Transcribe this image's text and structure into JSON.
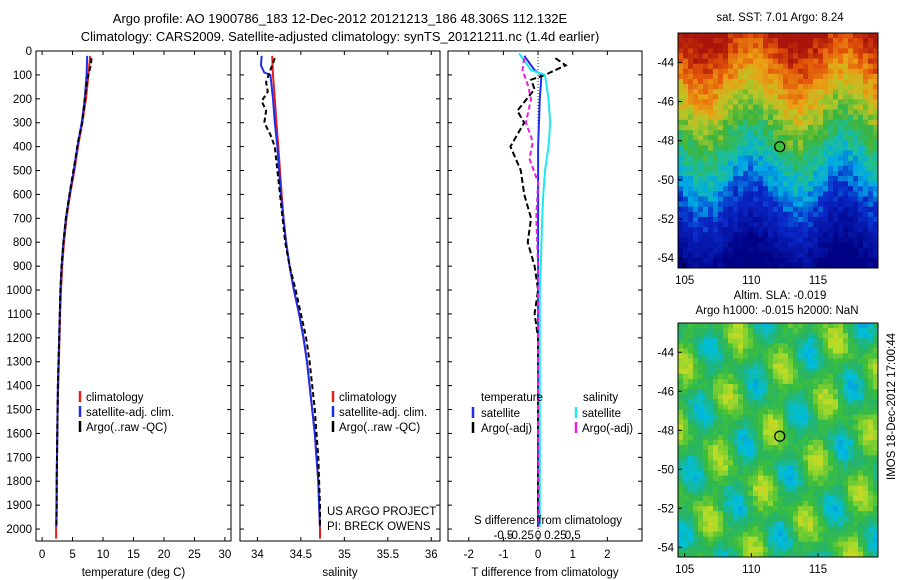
{
  "titles": {
    "line1": "Argo profile: AO 1900786_183 12-Dec-2012 20121213_186 48.306S 112.132E",
    "line2": "Climatology: CARS2009. Satellite-adjusted climatology: synTS_20121211.nc (1.4d earlier)"
  },
  "credit": {
    "line1": "US ARGO PROJECT",
    "line2": "PI: BRECK OWENS"
  },
  "watermark": "IMOS 18-Dec-2012 17:00:44",
  "colors": {
    "climatology": "#e8201c",
    "satellite": "#1f2ee8",
    "argo": "#000000",
    "salinity_satellite": "#1ee8f0",
    "salinity_argo": "#e81ee0"
  },
  "chart_data": [
    {
      "type": "line",
      "id": "temperature",
      "xlabel": "temperature (deg C)",
      "ylabel": "",
      "xlim": [
        -1,
        31
      ],
      "xticks": [
        0,
        5,
        10,
        15,
        20,
        25,
        30
      ],
      "ylim": [
        2050,
        0
      ],
      "yticks": [
        0,
        100,
        200,
        300,
        400,
        500,
        600,
        700,
        800,
        900,
        1000,
        1100,
        1200,
        1300,
        1400,
        1500,
        1600,
        1700,
        1800,
        1900,
        2000
      ],
      "legend": {
        "position": "bottom-right",
        "items": [
          "climatology",
          "satellite-adj. clim.",
          "Argo(..raw -QC)"
        ]
      },
      "series": [
        {
          "name": "climatology",
          "color": "#e8201c",
          "dash": "",
          "points": [
            [
              7.9,
              20
            ],
            [
              7.6,
              100
            ],
            [
              7.2,
              200
            ],
            [
              6.6,
              300
            ],
            [
              5.9,
              400
            ],
            [
              5.3,
              500
            ],
            [
              4.6,
              600
            ],
            [
              4.0,
              700
            ],
            [
              3.6,
              800
            ],
            [
              3.3,
              900
            ],
            [
              3.1,
              1000
            ],
            [
              2.95,
              1100
            ],
            [
              2.85,
              1200
            ],
            [
              2.75,
              1300
            ],
            [
              2.65,
              1400
            ],
            [
              2.55,
              1500
            ],
            [
              2.5,
              1600
            ],
            [
              2.45,
              1700
            ],
            [
              2.4,
              1800
            ],
            [
              2.35,
              1900
            ],
            [
              2.3,
              2000
            ],
            [
              2.3,
              2040
            ]
          ]
        },
        {
          "name": "satellite-adj. clim.",
          "color": "#1f2ee8",
          "dash": "",
          "points": [
            [
              7.4,
              20
            ],
            [
              7.3,
              100
            ],
            [
              7.0,
              200
            ],
            [
              6.5,
              300
            ],
            [
              5.8,
              400
            ],
            [
              5.2,
              500
            ],
            [
              4.5,
              600
            ],
            [
              3.9,
              700
            ],
            [
              3.5,
              800
            ],
            [
              3.2,
              900
            ],
            [
              3.0,
              1000
            ],
            [
              2.9,
              1100
            ],
            [
              2.8,
              1200
            ],
            [
              2.7,
              1300
            ],
            [
              2.6,
              1400
            ],
            [
              2.55,
              1500
            ],
            [
              2.5,
              1600
            ],
            [
              2.45,
              1700
            ],
            [
              2.4,
              1800
            ],
            [
              2.4,
              1900
            ],
            [
              2.35,
              1990
            ]
          ]
        },
        {
          "name": "Argo(..raw -QC)",
          "color": "#000000",
          "dash": "5,3",
          "points": [
            [
              8.1,
              30
            ],
            [
              8.0,
              60
            ],
            [
              7.4,
              120
            ],
            [
              7.0,
              200
            ],
            [
              6.6,
              300
            ],
            [
              5.9,
              380
            ],
            [
              5.6,
              430
            ],
            [
              5.0,
              520
            ],
            [
              4.5,
              600
            ],
            [
              3.9,
              700
            ],
            [
              3.5,
              800
            ],
            [
              3.2,
              900
            ],
            [
              3.0,
              1000
            ],
            [
              2.9,
              1100
            ],
            [
              2.8,
              1200
            ],
            [
              2.7,
              1300
            ],
            [
              2.6,
              1400
            ],
            [
              2.55,
              1500
            ],
            [
              2.5,
              1600
            ],
            [
              2.45,
              1700
            ],
            [
              2.4,
              1800
            ],
            [
              2.4,
              1900
            ],
            [
              2.35,
              1990
            ]
          ]
        }
      ]
    },
    {
      "type": "line",
      "id": "salinity",
      "xlabel": "salinity",
      "xlim": [
        33.8,
        36.1
      ],
      "xticks": [
        34,
        34.5,
        35,
        35.5,
        36
      ],
      "xticklabels": [
        "34",
        "34.5",
        "35",
        "35.5",
        "36"
      ],
      "ylim": [
        2050,
        0
      ],
      "legend": {
        "position": "bottom-right",
        "items": [
          "climatology",
          "satellite-adj. clim.",
          "Argo(..raw -QC)"
        ]
      },
      "series": [
        {
          "name": "climatology",
          "color": "#e8201c",
          "dash": "",
          "points": [
            [
              34.17,
              20
            ],
            [
              34.18,
              100
            ],
            [
              34.2,
              200
            ],
            [
              34.22,
              300
            ],
            [
              34.24,
              400
            ],
            [
              34.26,
              500
            ],
            [
              34.28,
              600
            ],
            [
              34.3,
              700
            ],
            [
              34.33,
              800
            ],
            [
              34.37,
              900
            ],
            [
              34.42,
              1000
            ],
            [
              34.48,
              1100
            ],
            [
              34.53,
              1200
            ],
            [
              34.57,
              1300
            ],
            [
              34.6,
              1400
            ],
            [
              34.63,
              1500
            ],
            [
              34.66,
              1600
            ],
            [
              34.68,
              1700
            ],
            [
              34.7,
              1800
            ],
            [
              34.71,
              1900
            ],
            [
              34.72,
              2000
            ],
            [
              34.72,
              2040
            ]
          ]
        },
        {
          "name": "satellite-adj. clim.",
          "color": "#1f2ee8",
          "dash": "",
          "points": [
            [
              34.05,
              20
            ],
            [
              34.04,
              60
            ],
            [
              34.08,
              90
            ],
            [
              34.15,
              100
            ],
            [
              34.18,
              200
            ],
            [
              34.2,
              300
            ],
            [
              34.23,
              400
            ],
            [
              34.25,
              500
            ],
            [
              34.27,
              600
            ],
            [
              34.3,
              700
            ],
            [
              34.33,
              800
            ],
            [
              34.37,
              900
            ],
            [
              34.42,
              1000
            ],
            [
              34.48,
              1100
            ],
            [
              34.53,
              1200
            ],
            [
              34.57,
              1300
            ],
            [
              34.6,
              1400
            ],
            [
              34.63,
              1500
            ],
            [
              34.66,
              1600
            ],
            [
              34.68,
              1700
            ],
            [
              34.7,
              1800
            ],
            [
              34.71,
              1900
            ],
            [
              34.72,
              1990
            ]
          ]
        },
        {
          "name": "Argo(..raw -QC)",
          "color": "#000000",
          "dash": "5,3",
          "points": [
            [
              34.2,
              30
            ],
            [
              34.15,
              80
            ],
            [
              34.1,
              130
            ],
            [
              34.12,
              170
            ],
            [
              34.05,
              210
            ],
            [
              34.1,
              250
            ],
            [
              34.08,
              300
            ],
            [
              34.15,
              350
            ],
            [
              34.2,
              400
            ],
            [
              34.23,
              500
            ],
            [
              34.26,
              600
            ],
            [
              34.29,
              700
            ],
            [
              34.32,
              800
            ],
            [
              34.37,
              900
            ],
            [
              34.44,
              1000
            ],
            [
              34.5,
              1100
            ],
            [
              34.56,
              1200
            ],
            [
              34.6,
              1300
            ],
            [
              34.63,
              1400
            ],
            [
              34.66,
              1500
            ],
            [
              34.68,
              1600
            ],
            [
              34.7,
              1700
            ],
            [
              34.71,
              1800
            ],
            [
              34.72,
              1900
            ],
            [
              34.72,
              1990
            ]
          ]
        }
      ]
    },
    {
      "type": "line",
      "id": "difference",
      "xlabel": "T difference from climatology",
      "xlabel_top": "S difference from climatology",
      "xlim": [
        -2.6,
        3.0
      ],
      "xticks": [
        -2,
        -1,
        0,
        1,
        2
      ],
      "s_ticklabels": [
        "-0.5",
        "-0.25",
        "0",
        "0.25",
        "0.5"
      ],
      "ylim": [
        2050,
        0
      ],
      "legend": {
        "position": "bottom",
        "temperature": {
          "header": "temperature",
          "items": [
            "satellite",
            "Argo(-adj)"
          ]
        },
        "salinity": {
          "header": "salinity",
          "items": [
            "satellite",
            "Argo(-adj)"
          ]
        }
      },
      "series": [
        {
          "name": "satellite",
          "group": "temperature",
          "color": "#1f2ee8",
          "dash": "",
          "points": [
            [
              -0.4,
              20
            ],
            [
              -0.1,
              80
            ],
            [
              0.1,
              100
            ],
            [
              0.05,
              200
            ],
            [
              0.0,
              400
            ],
            [
              0.0,
              800
            ],
            [
              0.0,
              1200
            ],
            [
              0.0,
              1600
            ],
            [
              0.0,
              1990
            ]
          ]
        },
        {
          "name": "Argo(-adj)",
          "group": "temperature",
          "color": "#000000",
          "dash": "6,3",
          "points": [
            [
              0.5,
              30
            ],
            [
              0.8,
              60
            ],
            [
              0.5,
              80
            ],
            [
              0.2,
              100
            ],
            [
              -0.2,
              120
            ],
            [
              -0.1,
              160
            ],
            [
              -0.6,
              250
            ],
            [
              -0.4,
              300
            ],
            [
              -0.8,
              400
            ],
            [
              -0.5,
              500
            ],
            [
              -0.4,
              600
            ],
            [
              -0.2,
              700
            ],
            [
              -0.3,
              800
            ],
            [
              -0.1,
              900
            ],
            [
              0.0,
              1000
            ],
            [
              -0.1,
              1100
            ],
            [
              0.0,
              1200
            ],
            [
              0.0,
              1600
            ],
            [
              0.0,
              1990
            ]
          ]
        },
        {
          "name": "satellite",
          "group": "salinity",
          "color": "#1ee8f0",
          "dash": "",
          "points": [
            [
              -0.55,
              10
            ],
            [
              -0.4,
              40
            ],
            [
              -0.2,
              80
            ],
            [
              0.2,
              100
            ],
            [
              0.3,
              200
            ],
            [
              0.35,
              300
            ],
            [
              0.3,
              400
            ],
            [
              0.2,
              500
            ],
            [
              0.15,
              600
            ],
            [
              0.12,
              700
            ],
            [
              0.1,
              800
            ],
            [
              0.08,
              900
            ],
            [
              0.05,
              1000
            ],
            [
              0.05,
              1200
            ],
            [
              0.05,
              1500
            ],
            [
              0.05,
              1990
            ]
          ]
        },
        {
          "name": "Argo(-adj)",
          "group": "salinity",
          "color": "#e81ee0",
          "dash": "5,3",
          "points": [
            [
              -0.4,
              30
            ],
            [
              -0.45,
              80
            ],
            [
              -0.3,
              140
            ],
            [
              -0.2,
              200
            ],
            [
              -0.35,
              300
            ],
            [
              -0.15,
              380
            ],
            [
              -0.25,
              450
            ],
            [
              0.0,
              550
            ],
            [
              -0.05,
              700
            ],
            [
              0.0,
              900
            ],
            [
              0.0,
              1200
            ],
            [
              0.0,
              1500
            ],
            [
              0.02,
              1990
            ]
          ]
        }
      ]
    },
    {
      "type": "heatmap",
      "id": "sst_map",
      "title": "sat. SST: 7.01 Argo: 8.24",
      "xlim": [
        104.5,
        119.5
      ],
      "ylim": [
        -54.5,
        -42.5
      ],
      "xticks": [
        105,
        110,
        115
      ],
      "yticks": [
        -44,
        -46,
        -48,
        -50,
        -52,
        -54
      ],
      "marker": {
        "lon": 112.132,
        "lat": -48.306
      }
    },
    {
      "type": "heatmap",
      "id": "sla_map",
      "title": "Altim. SLA: -0.019",
      "subtitle": "Argo h1000: -0.015 h2000: NaN",
      "xlim": [
        104.5,
        119.5
      ],
      "ylim": [
        -54.5,
        -42.5
      ],
      "xticks": [
        105,
        110,
        115
      ],
      "yticks": [
        -44,
        -46,
        -48,
        -50,
        -52,
        -54
      ],
      "marker": {
        "lon": 112.132,
        "lat": -48.306
      }
    }
  ]
}
